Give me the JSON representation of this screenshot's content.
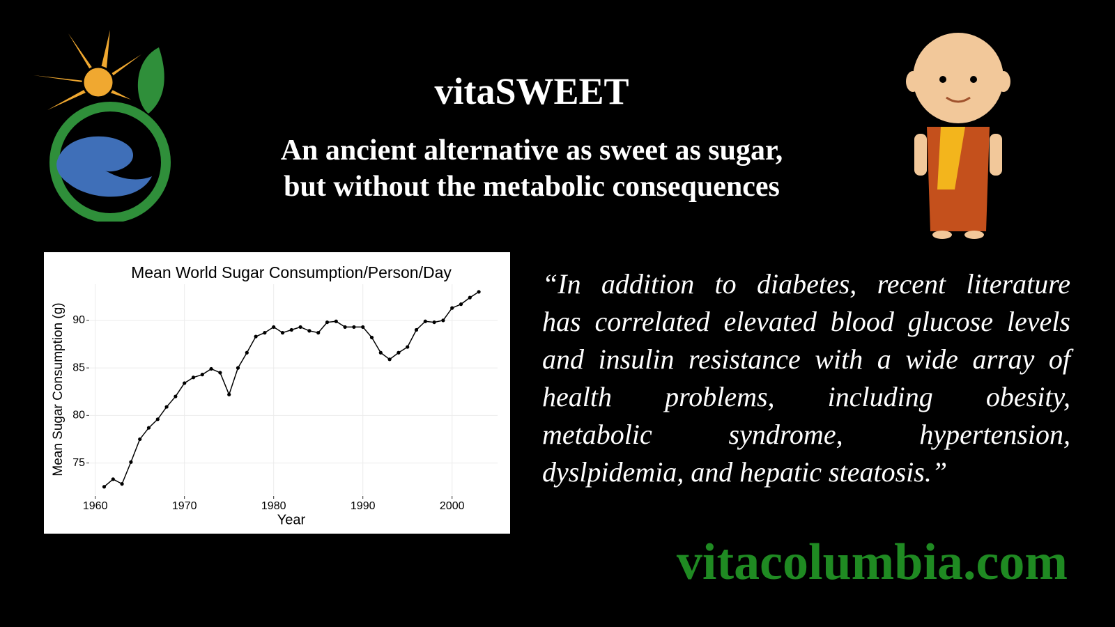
{
  "header": {
    "title": "vitaSWEET",
    "subtitle_lines": [
      "An ancient alternative as sweet as sugar,",
      "but without the metabolic consequences"
    ]
  },
  "quote_lines": [
    "“In addition to diabetes, recent literature",
    "has correlated elevated blood glucose levels",
    "and insulin resistance with a wide array of",
    "health problems, including obesity,",
    "metabolic syndrome, hypertension,",
    "dyslpidemia, and hepatic steatosis.”"
  ],
  "website": "vitacolumbia.com",
  "chart_data": {
    "type": "line",
    "title": "Mean World Sugar Consumption/Person/Day",
    "x_label": "Year",
    "y_label": "Mean Sugar Consumption (g)",
    "x": [
      1961,
      1962,
      1963,
      1964,
      1965,
      1966,
      1967,
      1968,
      1969,
      1970,
      1971,
      1972,
      1973,
      1974,
      1975,
      1976,
      1977,
      1978,
      1979,
      1980,
      1981,
      1982,
      1983,
      1984,
      1985,
      1986,
      1987,
      1988,
      1989,
      1990,
      1991,
      1992,
      1993,
      1994,
      1995,
      1996,
      1997,
      1998,
      1999,
      2000,
      2001,
      2002,
      2003
    ],
    "values": [
      72.5,
      73.3,
      72.8,
      75.1,
      77.5,
      78.7,
      79.6,
      80.9,
      82.0,
      83.4,
      84.0,
      84.3,
      84.9,
      84.5,
      82.2,
      85.0,
      86.6,
      88.3,
      88.7,
      89.3,
      88.7,
      89.0,
      89.3,
      88.9,
      88.7,
      89.8,
      89.9,
      89.3,
      89.3,
      89.3,
      88.2,
      86.6,
      85.9,
      86.6,
      87.2,
      89.0,
      89.9,
      89.8,
      90.0,
      91.3,
      91.7,
      92.4,
      93.0
    ],
    "color": "#000000",
    "xlim": [
      1959.4,
      2005.1
    ],
    "xticks": [
      1960,
      1970,
      1980,
      1990,
      2000
    ],
    "ylim": [
      71.6,
      93.8
    ],
    "yticks": [
      75,
      80,
      85,
      90
    ],
    "grid": true
  }
}
